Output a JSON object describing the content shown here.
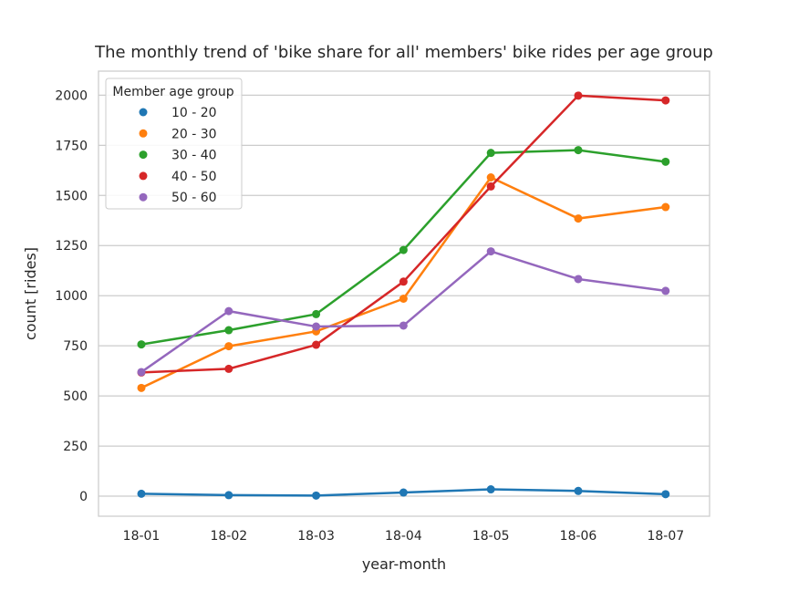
{
  "chart_data": {
    "type": "line",
    "title": "The monthly trend of 'bike share for all' members' bike rides per age group",
    "xlabel": "year-month",
    "ylabel": "count [rides]",
    "categories": [
      "18-01",
      "18-02",
      "18-03",
      "18-04",
      "18-05",
      "18-06",
      "18-07"
    ],
    "ylim": [
      -100,
      2120
    ],
    "yticks": [
      0,
      250,
      500,
      750,
      1000,
      1250,
      1500,
      1750,
      2000
    ],
    "grid": true,
    "legend": {
      "title": "Member age group",
      "placement": "top-left"
    },
    "series": [
      {
        "name": "10 - 20",
        "color": "#1f77b4",
        "values": [
          12,
          5,
          3,
          18,
          34,
          26,
          10
        ]
      },
      {
        "name": "20 - 30",
        "color": "#ff7f0e",
        "values": [
          540,
          748,
          822,
          985,
          1590,
          1385,
          1442
        ]
      },
      {
        "name": "30 - 40",
        "color": "#2ca02c",
        "values": [
          757,
          828,
          908,
          1228,
          1712,
          1726,
          1668
        ]
      },
      {
        "name": "40 - 50",
        "color": "#d62728",
        "values": [
          617,
          635,
          755,
          1070,
          1545,
          1998,
          1974
        ]
      },
      {
        "name": "50 - 60",
        "color": "#9467bd",
        "values": [
          619,
          923,
          846,
          851,
          1221,
          1083,
          1024
        ]
      }
    ]
  }
}
